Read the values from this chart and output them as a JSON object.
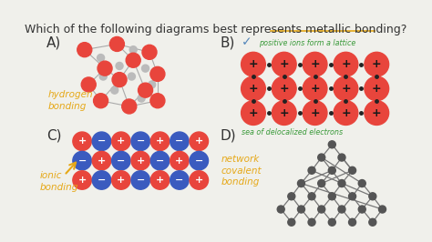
{
  "bg_color": "#f0f0eb",
  "title_color": "#333333",
  "underline_color": "#e6a817",
  "label_orange": "#e6a817",
  "checkmark_color": "#5588bb",
  "green_text_color": "#3a9a3a",
  "red_circle_color": "#e8453c",
  "blue_circle_color": "#3a5bbf",
  "small_circle_color": "#bbbbbb",
  "dark_node_color": "#555555",
  "line_color": "#aaaaaa",
  "label_color": "#333333",
  "title_part1": "Which of the following diagrams best represents ",
  "title_part2": "metallic bonding?",
  "label_A": "A)",
  "label_B": "B)",
  "label_C": "C)",
  "label_D": "D)",
  "hydrogen_label": "hydrogen\nbonding",
  "ionic_label": "ionic\nbonding",
  "network_label": "network\ncovalent\nbonding",
  "positive_ions_text": "positive ions form a lattice",
  "sea_electrons_text": "sea of delocalized electrons",
  "figw": 4.74,
  "figh": 2.66,
  "dpi": 100
}
